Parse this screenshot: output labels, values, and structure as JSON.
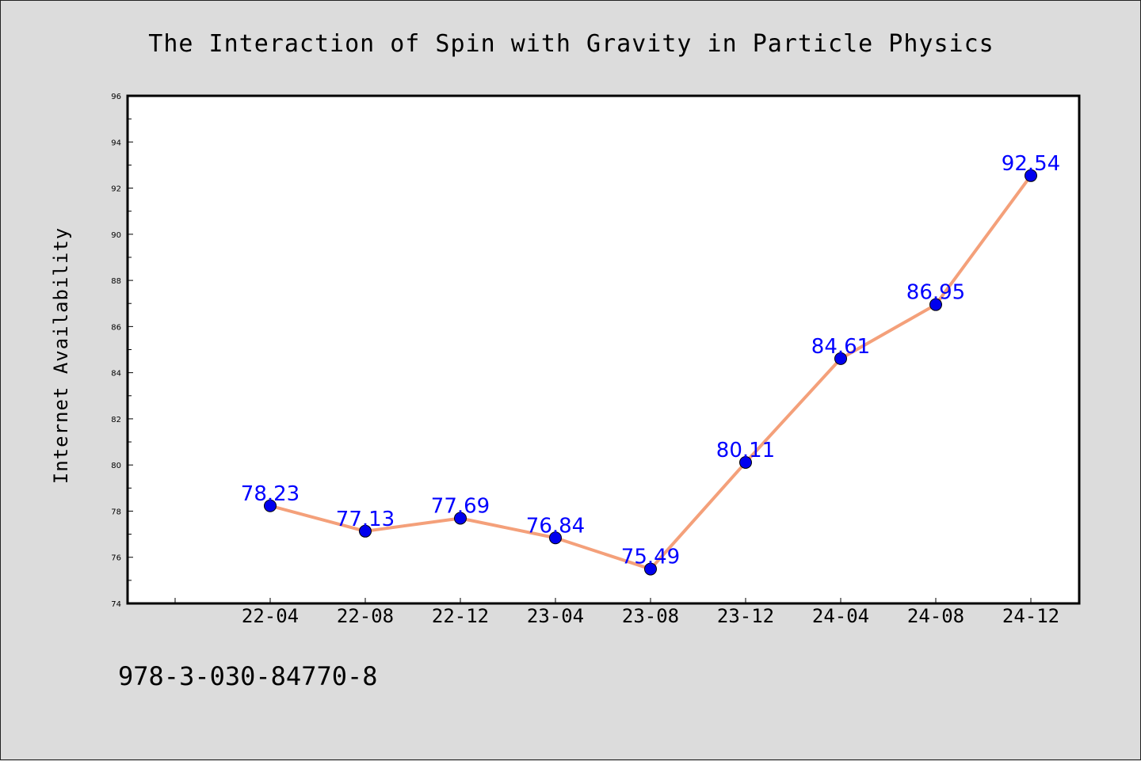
{
  "chart_data": {
    "type": "line",
    "title": "The Interaction of Spin with Gravity in Particle Physics",
    "xlabel": "",
    "ylabel": "Internet Availability",
    "categories": [
      "22-04",
      "22-08",
      "22-12",
      "23-04",
      "23-08",
      "23-12",
      "24-04",
      "24-08",
      "24-12"
    ],
    "series": [
      {
        "values": [
          78.23,
          77.13,
          77.69,
          76.84,
          75.49,
          80.11,
          84.61,
          86.95,
          92.54
        ]
      }
    ],
    "data_labels": [
      "78.23",
      "77.13",
      "77.69",
      "76.84",
      "75.49",
      "80.11",
      "84.61",
      "86.95",
      "92.54"
    ],
    "ylim": [
      74,
      96
    ],
    "yticks": [
      74,
      76,
      78,
      80,
      82,
      84,
      86,
      88,
      90,
      92,
      94,
      96
    ],
    "grid": false,
    "legend": "none",
    "colors": {
      "line": "#f4a07a",
      "marker": "#0000ee",
      "label": "#0000ff",
      "plot_background": "#ffffff",
      "figure_background": "#dcdcdc"
    }
  },
  "footer": {
    "text": "978-3-030-84770-8"
  }
}
